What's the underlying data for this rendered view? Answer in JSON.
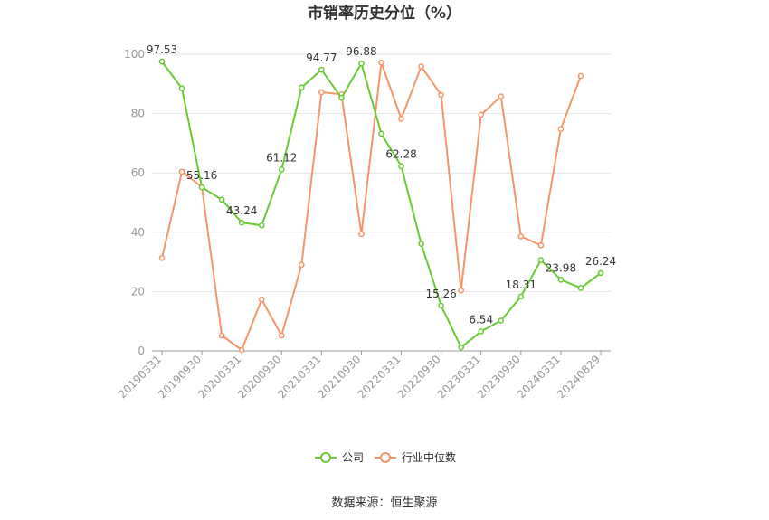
{
  "title": "市销率历史分位（%）",
  "source": "数据来源：恒生聚源",
  "colors": {
    "company": "#6acb34",
    "industry": "#f5956a",
    "grid": "#e6e6e6",
    "axis": "#999999"
  },
  "chart_data": {
    "type": "line",
    "title": "市销率历史分位（%）",
    "ylim": [
      0,
      100
    ],
    "yticks": [
      0,
      20,
      40,
      60,
      80,
      100
    ],
    "grid": true,
    "legend_position": "bottom",
    "x": [
      "20190331",
      "20190630",
      "20190930",
      "20191231",
      "20200331",
      "20200630",
      "20200930",
      "20201231",
      "20210331",
      "20210630",
      "20210930",
      "20211231",
      "20220331",
      "20220630",
      "20220930",
      "20221231",
      "20230331",
      "20230630",
      "20230930",
      "20231231",
      "20240331",
      "20240630",
      "20240829"
    ],
    "xtick_labels": [
      "20190331",
      "20190930",
      "20200331",
      "20200930",
      "20210331",
      "20210930",
      "20220331",
      "20220930",
      "20230331",
      "20230930",
      "20240331",
      "20240829"
    ],
    "series": [
      {
        "name": "公司",
        "color": "#6acb34",
        "values": [
          97.53,
          88.5,
          55.16,
          51.0,
          43.24,
          42.3,
          61.12,
          88.8,
          94.77,
          85.3,
          96.88,
          73.2,
          62.28,
          36.1,
          15.26,
          1.2,
          6.54,
          10.2,
          18.31,
          30.6,
          23.98,
          21.2,
          26.24
        ],
        "labels": {
          "0": "97.53",
          "2": "55.16",
          "4": "43.24",
          "6": "61.12",
          "8": "94.77",
          "10": "96.88",
          "12": "62.28",
          "14": "15.26",
          "16": "6.54",
          "18": "18.31",
          "20": "23.98",
          "22": "26.24"
        }
      },
      {
        "name": "行业中位数",
        "color": "#f5956a",
        "values": [
          31.3,
          60.4,
          55.3,
          5.2,
          0.3,
          17.3,
          5.2,
          29.0,
          87.2,
          86.5,
          39.4,
          97.2,
          78.2,
          95.9,
          86.3,
          20.4,
          79.6,
          85.8,
          38.6,
          35.6,
          74.8,
          92.7,
          null
        ]
      }
    ]
  }
}
